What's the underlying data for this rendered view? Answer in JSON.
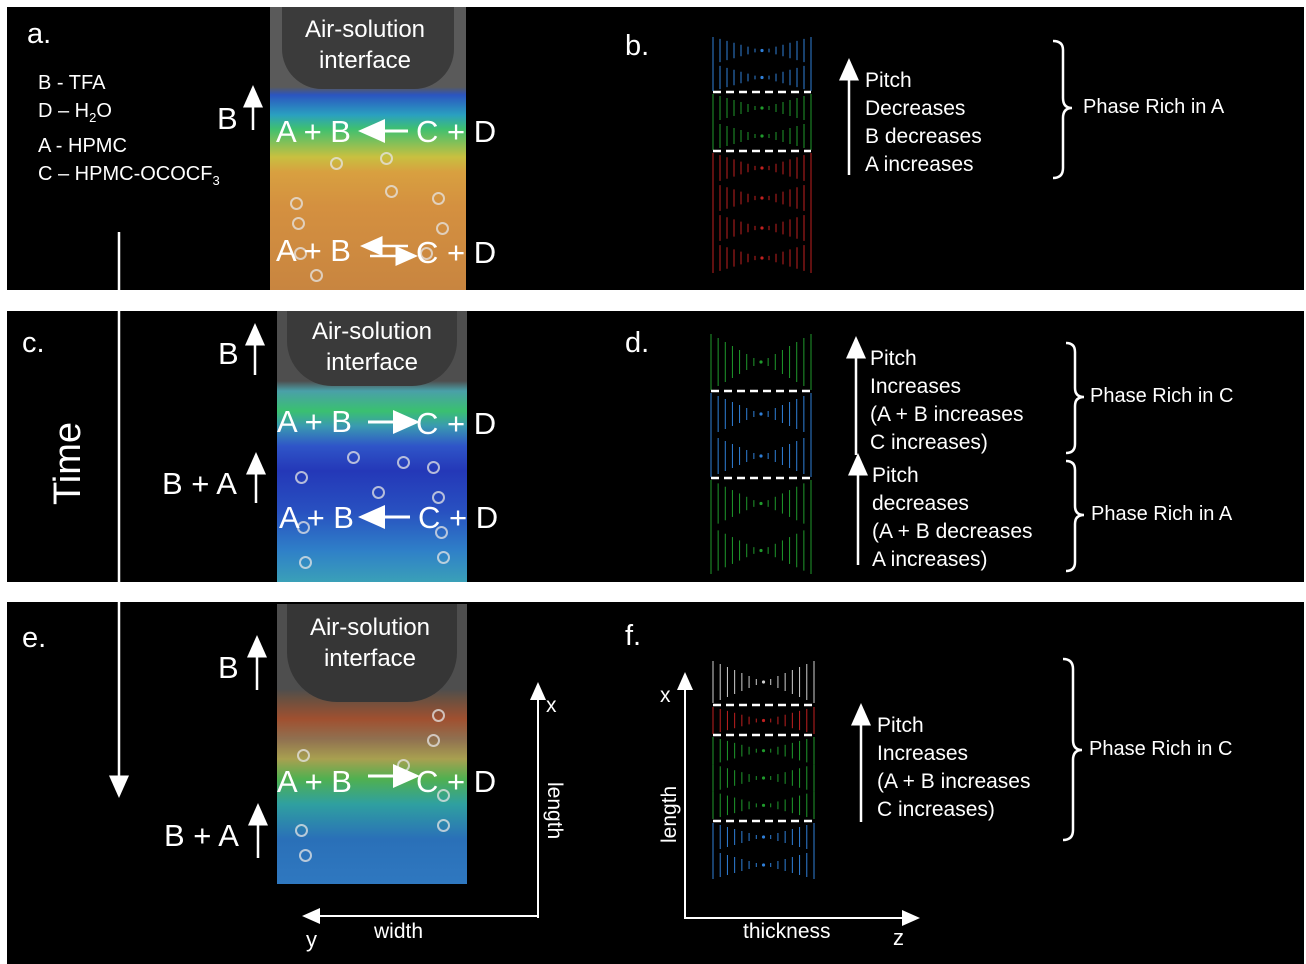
{
  "panels": {
    "a": {
      "label": "a.",
      "legend": [
        "B - TFA",
        "D – H",
        "2",
        "O",
        "A - HPMC",
        "C – HPMC-OCOCF",
        "3"
      ],
      "air_label": "Air-solution",
      "air_label2": "interface",
      "side_label": "B",
      "rxn1": "A + B",
      "rxn1b": "C + D",
      "rxn2": "A + B",
      "rxn2b": "C + D"
    },
    "b": {
      "label": "b.",
      "text": [
        "Pitch",
        "Decreases",
        "B decreases",
        "A increases"
      ],
      "phase": "Phase Rich in A",
      "stack": [
        "blue",
        "green",
        "red"
      ]
    },
    "c": {
      "label": "c.",
      "air_label": "Air-solution",
      "air_label2": "interface",
      "side_label1": "B",
      "side_label2": "B + A",
      "rxn1": "A + B",
      "rxn1b": "C + D",
      "rxn2": "A + B",
      "rxn2b": "C + D"
    },
    "d": {
      "label": "d.",
      "text1": [
        "Pitch",
        "Increases",
        "(A + B increases",
        "C increases)"
      ],
      "text2": [
        "Pitch",
        "decreases",
        "(A + B decreases",
        "A increases)"
      ],
      "phase1": "Phase Rich in C",
      "phase2": "Phase Rich in A",
      "stack": [
        "green",
        "blue",
        "green"
      ]
    },
    "e": {
      "label": "e.",
      "air_label": "Air-solution",
      "air_label2": "interface",
      "side_label1": "B",
      "side_label2": "B + A",
      "rxn1": "A + B",
      "rxn1b": "C + D",
      "axis_x": "x",
      "axis_y": "y",
      "axis_length": "length",
      "axis_width": "width"
    },
    "f": {
      "label": "f.",
      "text": [
        "Pitch",
        "Increases",
        "(A + B increases",
        "C increases)"
      ],
      "phase": "Phase Rich in C",
      "axis_x": "x",
      "axis_length": "length",
      "axis_thickness": "thickness",
      "axis_z": "z",
      "stack": [
        "white",
        "red",
        "green",
        "blue"
      ]
    }
  },
  "time_label": "Time",
  "colors": {
    "blue": "#2f7fd8",
    "green": "#1f9a2c",
    "red": "#c02020",
    "white": "#cfcfcf"
  }
}
